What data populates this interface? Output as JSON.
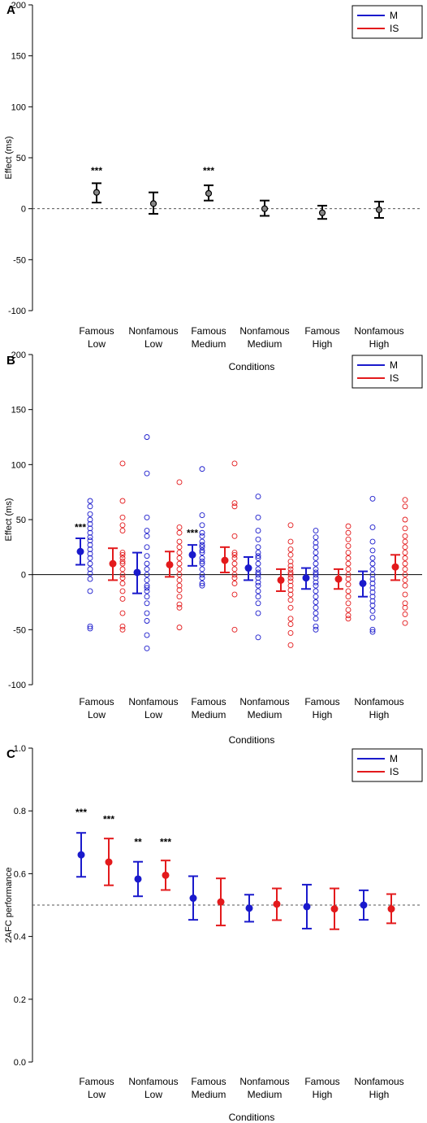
{
  "chart_data": [
    {
      "panel_label": "A",
      "type": "scatter",
      "ylabel": "Effect (ms)",
      "xlabel": "Conditions",
      "ylim": [
        -100,
        200
      ],
      "yticks": [
        -100,
        -50,
        0,
        50,
        100,
        150,
        200
      ],
      "reference_line": {
        "y": 0,
        "style": "dashed"
      },
      "categories": [
        [
          "Famous",
          "Low"
        ],
        [
          "Nonfamous",
          "Low"
        ],
        [
          "Famous",
          "Medium"
        ],
        [
          "Nonfamous",
          "Medium"
        ],
        [
          "Famous",
          "High"
        ],
        [
          "Nonfamous",
          "High"
        ]
      ],
      "legend": [
        {
          "name": "M",
          "color": "#1a1acc"
        },
        {
          "name": "IS",
          "color": "#e31a1c"
        }
      ],
      "series": [
        {
          "color": "#000000",
          "points": [
            {
              "cat": 0,
              "mean": 16,
              "low": 6,
              "high": 25
            },
            {
              "cat": 1,
              "mean": 5,
              "low": -5,
              "high": 16
            },
            {
              "cat": 2,
              "mean": 15,
              "low": 8,
              "high": 23
            },
            {
              "cat": 3,
              "mean": 0,
              "low": -7,
              "high": 8
            },
            {
              "cat": 4,
              "mean": -4,
              "low": -10,
              "high": 3
            },
            {
              "cat": 5,
              "mean": -1,
              "low": -9,
              "high": 7
            }
          ]
        }
      ],
      "annotations": [
        {
          "cat": 0,
          "text": "***",
          "y": 34
        },
        {
          "cat": 2,
          "text": "***",
          "y": 34
        }
      ]
    },
    {
      "panel_label": "B",
      "type": "scatter",
      "ylabel": "Effect (ms)",
      "xlabel": "Conditions",
      "ylim": [
        -100,
        200
      ],
      "yticks": [
        -100,
        -50,
        0,
        50,
        100,
        150,
        200
      ],
      "reference_line": {
        "y": 0,
        "style": "solid"
      },
      "categories": [
        [
          "Famous",
          "Low"
        ],
        [
          "Nonfamous",
          "Low"
        ],
        [
          "Famous",
          "Medium"
        ],
        [
          "Nonfamous",
          "Medium"
        ],
        [
          "Famous",
          "High"
        ],
        [
          "Nonfamous",
          "High"
        ]
      ],
      "legend": [
        {
          "name": "M",
          "color": "#1a1acc"
        },
        {
          "name": "IS",
          "color": "#e31a1c"
        }
      ],
      "series": [
        {
          "name": "M",
          "color": "#1a1acc",
          "points": [
            {
              "cat": 0,
              "mean": 21,
              "low": 9,
              "high": 33
            },
            {
              "cat": 1,
              "mean": 2,
              "low": -17,
              "high": 20
            },
            {
              "cat": 2,
              "mean": 18,
              "low": 8,
              "high": 27
            },
            {
              "cat": 3,
              "mean": 6,
              "low": -5,
              "high": 16
            },
            {
              "cat": 4,
              "mean": -3,
              "low": -13,
              "high": 6
            },
            {
              "cat": 5,
              "mean": -8,
              "low": -20,
              "high": 3
            }
          ]
        },
        {
          "name": "IS",
          "color": "#e31a1c",
          "points": [
            {
              "cat": 0,
              "mean": 10,
              "low": -5,
              "high": 24
            },
            {
              "cat": 1,
              "mean": 9,
              "low": -2,
              "high": 21
            },
            {
              "cat": 2,
              "mean": 13,
              "low": 2,
              "high": 25
            },
            {
              "cat": 3,
              "mean": -5,
              "low": -15,
              "high": 5
            },
            {
              "cat": 4,
              "mean": -4,
              "low": -13,
              "high": 5
            },
            {
              "cat": 5,
              "mean": 7,
              "low": -5,
              "high": 18
            }
          ]
        }
      ],
      "individual_points": [
        {
          "cat": 0,
          "series": "M",
          "values": [
            67,
            62,
            55,
            50,
            46,
            42,
            38,
            34,
            31,
            27,
            23,
            19,
            15,
            10,
            5,
            1,
            -4,
            -15,
            -47,
            -49
          ]
        },
        {
          "cat": 0,
          "series": "IS",
          "values": [
            101,
            67,
            52,
            45,
            40,
            20,
            18,
            15,
            12,
            10,
            5,
            0,
            -3,
            -8,
            -15,
            -22,
            -35,
            -47,
            -50
          ]
        },
        {
          "cat": 1,
          "series": "M",
          "values": [
            125,
            92,
            52,
            40,
            35,
            25,
            17,
            10,
            5,
            0,
            -5,
            -10,
            -12,
            -15,
            -20,
            -26,
            -35,
            -42,
            -55,
            -67
          ]
        },
        {
          "cat": 1,
          "series": "IS",
          "values": [
            84,
            43,
            38,
            30,
            25,
            20,
            15,
            10,
            5,
            0,
            -5,
            -10,
            -14,
            -20,
            -27,
            -30,
            -48
          ]
        },
        {
          "cat": 2,
          "series": "M",
          "values": [
            96,
            54,
            45,
            38,
            35,
            30,
            27,
            25,
            22,
            20,
            15,
            12,
            10,
            5,
            0,
            -3,
            -8,
            -10
          ]
        },
        {
          "cat": 2,
          "series": "IS",
          "values": [
            101,
            65,
            62,
            35,
            20,
            18,
            15,
            10,
            5,
            0,
            -3,
            -8,
            -18,
            -50
          ]
        },
        {
          "cat": 3,
          "series": "M",
          "values": [
            71,
            52,
            40,
            32,
            25,
            20,
            17,
            15,
            10,
            5,
            2,
            0,
            -3,
            -7,
            -10,
            -15,
            -20,
            -26,
            -35,
            -57
          ]
        },
        {
          "cat": 3,
          "series": "IS",
          "values": [
            45,
            30,
            23,
            18,
            12,
            8,
            5,
            2,
            0,
            -3,
            -6,
            -10,
            -14,
            -18,
            -23,
            -30,
            -40,
            -45,
            -53,
            -64
          ]
        },
        {
          "cat": 4,
          "series": "M",
          "values": [
            40,
            34,
            29,
            25,
            20,
            15,
            10,
            5,
            2,
            0,
            -3,
            -7,
            -10,
            -15,
            -20,
            -25,
            -30,
            -35,
            -40,
            -47,
            -50
          ]
        },
        {
          "cat": 4,
          "series": "IS",
          "values": [
            44,
            38,
            32,
            26,
            20,
            15,
            10,
            5,
            0,
            -4,
            -9,
            -15,
            -20,
            -26,
            -32,
            -37,
            -40
          ]
        },
        {
          "cat": 5,
          "series": "M",
          "values": [
            69,
            43,
            30,
            22,
            15,
            10,
            5,
            0,
            -4,
            -8,
            -12,
            -16,
            -20,
            -24,
            -28,
            -33,
            -39,
            -50,
            -52
          ]
        },
        {
          "cat": 5,
          "series": "IS",
          "values": [
            68,
            62,
            50,
            42,
            35,
            30,
            25,
            20,
            15,
            10,
            5,
            0,
            -5,
            -10,
            -18,
            -26,
            -30,
            -36,
            -44
          ]
        }
      ],
      "annotations": [
        {
          "cat": 0,
          "text": "***",
          "y": 40
        },
        {
          "cat": 2,
          "text": "***",
          "y": 35
        }
      ]
    },
    {
      "panel_label": "C",
      "type": "scatter",
      "ylabel": "2AFC performance",
      "xlabel": "Conditions",
      "ylim": [
        0,
        1
      ],
      "yticks": [
        0.0,
        0.2,
        0.4,
        0.6,
        0.8,
        1.0
      ],
      "ytick_labels": [
        "0.0",
        "0.2",
        "0.4",
        "0.6",
        "0.8",
        "1.0"
      ],
      "reference_line": {
        "y": 0.5,
        "style": "dashed"
      },
      "categories": [
        [
          "Famous",
          "Low"
        ],
        [
          "Nonfamous",
          "Low"
        ],
        [
          "Famous",
          "Medium"
        ],
        [
          "Nonfamous",
          "Medium"
        ],
        [
          "Famous",
          "High"
        ],
        [
          "Nonfamous",
          "High"
        ]
      ],
      "legend": [
        {
          "name": "M",
          "color": "#1a1acc"
        },
        {
          "name": "IS",
          "color": "#e31a1c"
        }
      ],
      "series": [
        {
          "name": "M",
          "color": "#1a1acc",
          "points": [
            {
              "cat": 0,
              "mean": 0.66,
              "low": 0.59,
              "high": 0.73
            },
            {
              "cat": 1,
              "mean": 0.583,
              "low": 0.528,
              "high": 0.638
            },
            {
              "cat": 2,
              "mean": 0.522,
              "low": 0.453,
              "high": 0.592
            },
            {
              "cat": 3,
              "mean": 0.49,
              "low": 0.447,
              "high": 0.533
            },
            {
              "cat": 4,
              "mean": 0.495,
              "low": 0.425,
              "high": 0.565
            },
            {
              "cat": 5,
              "mean": 0.5,
              "low": 0.453,
              "high": 0.547
            }
          ]
        },
        {
          "name": "IS",
          "color": "#e31a1c",
          "points": [
            {
              "cat": 0,
              "mean": 0.637,
              "low": 0.563,
              "high": 0.712
            },
            {
              "cat": 1,
              "mean": 0.595,
              "low": 0.548,
              "high": 0.642
            },
            {
              "cat": 2,
              "mean": 0.51,
              "low": 0.435,
              "high": 0.585
            },
            {
              "cat": 3,
              "mean": 0.503,
              "low": 0.452,
              "high": 0.553
            },
            {
              "cat": 4,
              "mean": 0.488,
              "low": 0.423,
              "high": 0.553
            },
            {
              "cat": 5,
              "mean": 0.488,
              "low": 0.442,
              "high": 0.535
            }
          ]
        }
      ],
      "annotations": [
        {
          "cat": 0,
          "series": "M",
          "text": "***",
          "y": 0.785
        },
        {
          "cat": 0,
          "series": "IS",
          "text": "***",
          "y": 0.763
        },
        {
          "cat": 1,
          "series": "M",
          "text": "**",
          "y": 0.69
        },
        {
          "cat": 1,
          "series": "IS",
          "text": "***",
          "y": 0.69
        }
      ]
    }
  ]
}
